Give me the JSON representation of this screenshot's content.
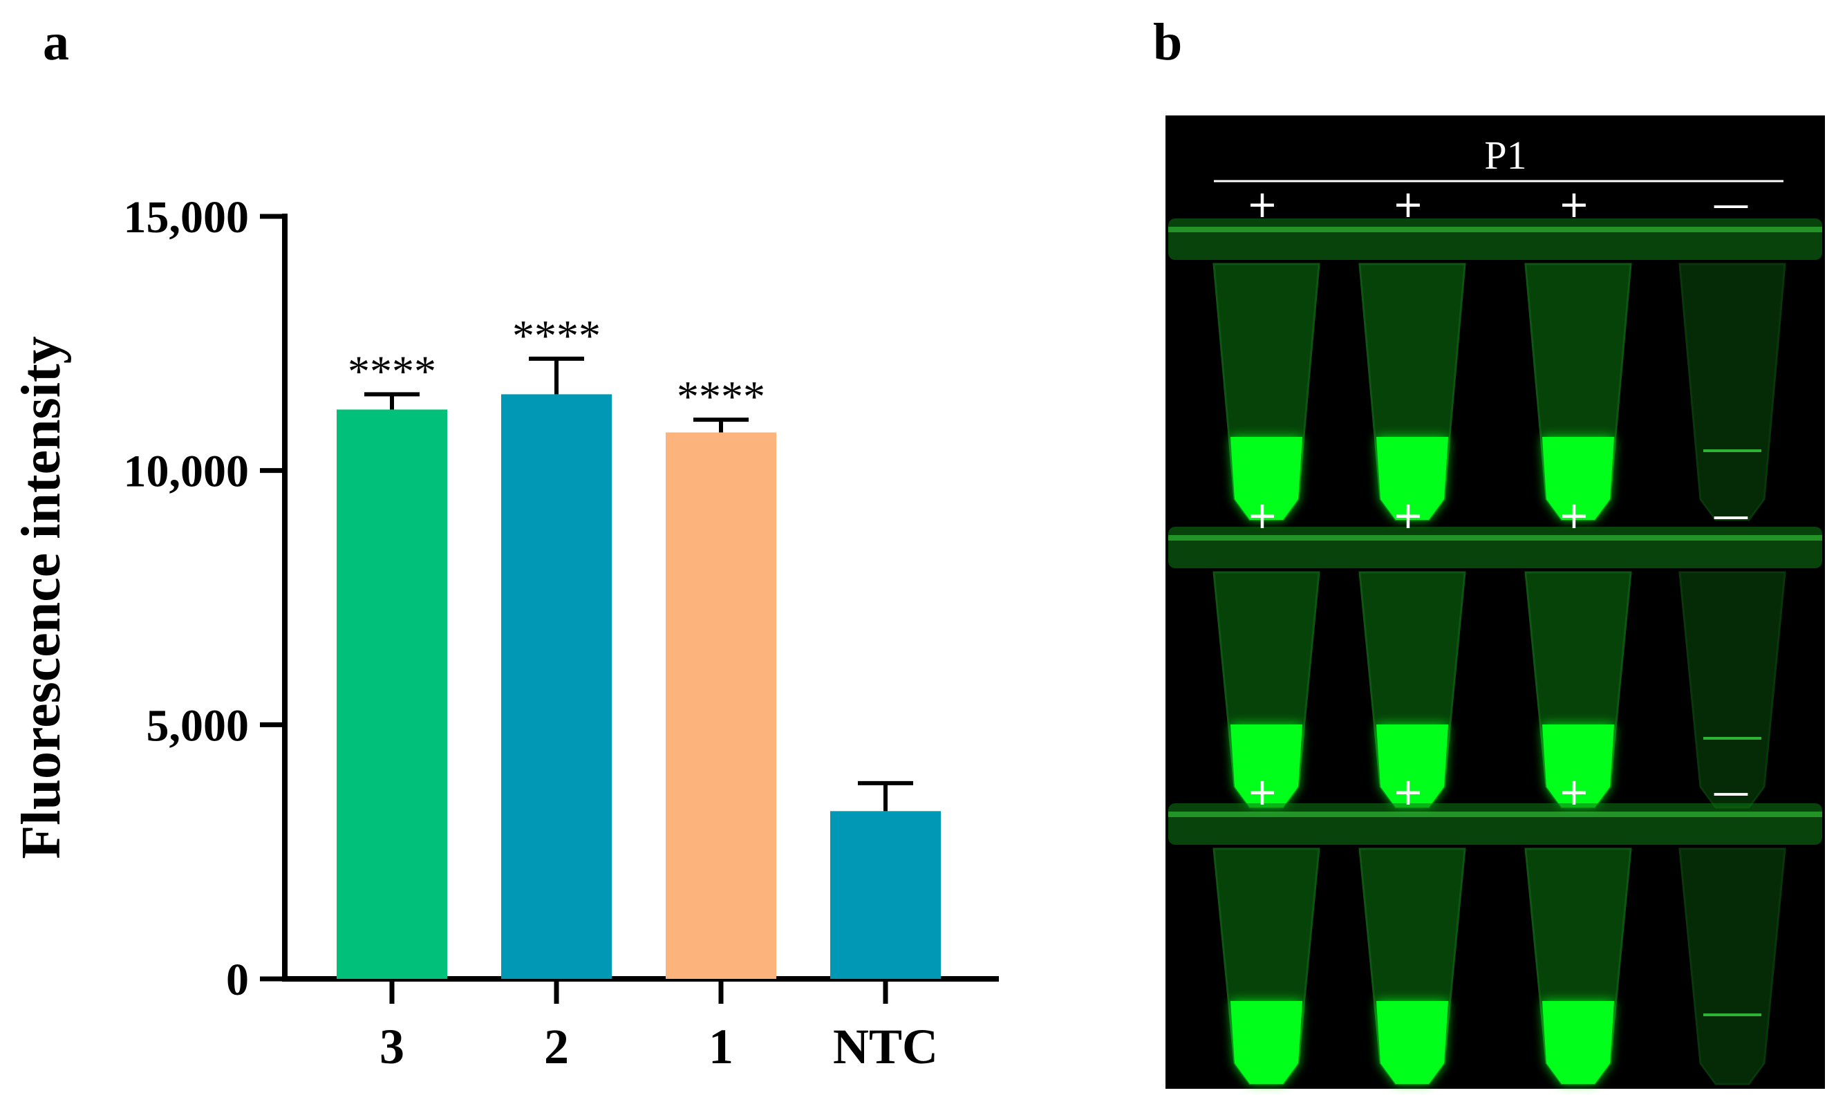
{
  "panel_labels": {
    "a": "a",
    "b": "b"
  },
  "chart_data": {
    "type": "bar",
    "title": "",
    "xlabel": "",
    "ylabel": "Fluorescence intensity",
    "ylim": [
      0,
      15000
    ],
    "yticks": [
      0,
      5000,
      10000,
      15000
    ],
    "ytick_labels": [
      "0",
      "5,000",
      "10,000",
      "15,000"
    ],
    "categories": [
      "3",
      "2",
      "1",
      "NTC"
    ],
    "values": [
      11200,
      11500,
      10750,
      3300
    ],
    "errors": [
      300,
      700,
      250,
      550
    ],
    "significance": [
      "****",
      "****",
      "****",
      ""
    ],
    "colors": [
      "#00c07a",
      "#0098b5",
      "#fdb47c",
      "#0098b5"
    ]
  },
  "photo": {
    "group_label": "P1",
    "rows": [
      {
        "signs": [
          "+",
          "+",
          "+",
          "—"
        ],
        "results": [
          1,
          1,
          1,
          0
        ]
      },
      {
        "signs": [
          "+",
          "+",
          "+",
          "—"
        ],
        "results": [
          1,
          1,
          1,
          0
        ]
      },
      {
        "signs": [
          "+",
          "+",
          "+",
          "—"
        ],
        "results": [
          1,
          1,
          1,
          0
        ]
      }
    ],
    "colors": {
      "background": "#000000",
      "fluorescence": "#00ff1a",
      "tube": "#0c7a12"
    }
  }
}
